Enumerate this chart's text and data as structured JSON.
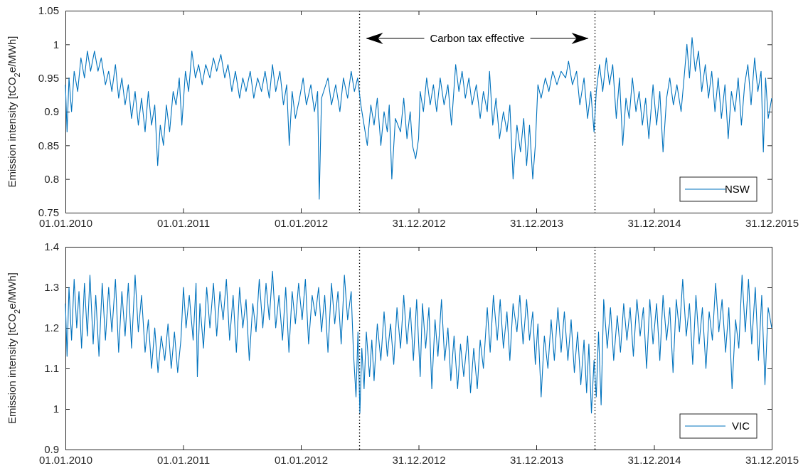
{
  "chart_data": [
    {
      "type": "line",
      "ylabel": "Emission intensity  [tCO$_{2}$e/MWh]",
      "annotations": [
        "Carbon tax effective"
      ],
      "legend": "bottom right",
      "xlim": [
        "2010-01-01",
        "2015-12-31"
      ],
      "xticks": [
        {
          "value": "2010-01-01",
          "label": "01.01.2010"
        },
        {
          "value": "2011-01-01",
          "label": "01.01.2011"
        },
        {
          "value": "2012-01-01",
          "label": "01.01.2012"
        },
        {
          "value": "2012-12-31",
          "label": "31.12.2012"
        },
        {
          "value": "2013-12-31",
          "label": "31.12.2013"
        },
        {
          "value": "2014-12-31",
          "label": "31.12.2014"
        },
        {
          "value": "2015-12-31",
          "label": "31.12.2015"
        }
      ],
      "ylim": [
        0.75,
        1.05
      ],
      "yticks": [
        0.75,
        0.8,
        0.85,
        0.9,
        0.95,
        1,
        1.05
      ],
      "ref_lines": [
        {
          "axis": "x",
          "value": "2012-07-01",
          "color": "#000000",
          "line_style": "dotted"
        },
        {
          "axis": "x",
          "value": "2014-07-01",
          "color": "#000000",
          "line_style": "dotted"
        }
      ],
      "series": [
        {
          "name": "NSW",
          "color": "#0072bd",
          "x": [
            "2010-01-01",
            "2010-01-06",
            "2010-01-12",
            "2010-01-20",
            "2010-01-28",
            "2010-02-08",
            "2010-02-18",
            "2010-03-01",
            "2010-03-10",
            "2010-03-20",
            "2010-04-01",
            "2010-04-12",
            "2010-04-22",
            "2010-05-05",
            "2010-05-15",
            "2010-05-25",
            "2010-06-05",
            "2010-06-15",
            "2010-06-25",
            "2010-07-05",
            "2010-07-15",
            "2010-07-25",
            "2010-08-05",
            "2010-08-15",
            "2010-08-25",
            "2010-09-05",
            "2010-09-15",
            "2010-09-25",
            "2010-10-05",
            "2010-10-14",
            "2010-10-22",
            "2010-11-01",
            "2010-11-10",
            "2010-11-20",
            "2010-12-01",
            "2010-12-10",
            "2010-12-20",
            "2010-12-28",
            "2011-01-08",
            "2011-01-18",
            "2011-01-28",
            "2011-02-08",
            "2011-02-18",
            "2011-03-01",
            "2011-03-12",
            "2011-03-25",
            "2011-04-05",
            "2011-04-15",
            "2011-04-28",
            "2011-05-10",
            "2011-05-20",
            "2011-06-01",
            "2011-06-12",
            "2011-06-25",
            "2011-07-05",
            "2011-07-15",
            "2011-07-28",
            "2011-08-08",
            "2011-08-20",
            "2011-09-01",
            "2011-09-12",
            "2011-09-25",
            "2011-10-05",
            "2011-10-15",
            "2011-10-28",
            "2011-11-08",
            "2011-11-18",
            "2011-11-26",
            "2011-12-05",
            "2011-12-15",
            "2011-12-28",
            "2012-01-08",
            "2012-01-18",
            "2012-02-01",
            "2012-02-12",
            "2012-02-22",
            "2012-02-27",
            "2012-03-05",
            "2012-03-25",
            "2012-04-05",
            "2012-04-18",
            "2012-05-01",
            "2012-05-12",
            "2012-05-25",
            "2012-06-05",
            "2012-06-15",
            "2012-06-25",
            "2012-07-05",
            "2012-07-15",
            "2012-07-25",
            "2012-08-05",
            "2012-08-15",
            "2012-08-25",
            "2012-09-05",
            "2012-09-15",
            "2012-09-25",
            "2012-10-01",
            "2012-10-09",
            "2012-10-20",
            "2012-11-05",
            "2012-11-15",
            "2012-11-25",
            "2012-12-05",
            "2012-12-12",
            "2012-12-22",
            "2012-12-31",
            "2013-01-05",
            "2013-01-15",
            "2013-01-25",
            "2013-02-05",
            "2013-02-15",
            "2013-02-25",
            "2013-03-08",
            "2013-03-20",
            "2013-04-01",
            "2013-04-12",
            "2013-04-25",
            "2013-05-05",
            "2013-05-15",
            "2013-05-25",
            "2013-06-05",
            "2013-06-15",
            "2013-06-28",
            "2013-07-10",
            "2013-07-20",
            "2013-08-01",
            "2013-08-08",
            "2013-08-18",
            "2013-08-28",
            "2013-09-08",
            "2013-09-20",
            "2013-10-01",
            "2013-10-10",
            "2013-10-20",
            "2013-11-01",
            "2013-11-12",
            "2013-11-22",
            "2013-12-01",
            "2013-12-10",
            "2013-12-20",
            "2013-12-28",
            "2014-01-05",
            "2014-01-15",
            "2014-01-28",
            "2014-02-08",
            "2014-02-20",
            "2014-03-05",
            "2014-03-18",
            "2014-04-01",
            "2014-04-10",
            "2014-04-22",
            "2014-05-05",
            "2014-05-15",
            "2014-05-28",
            "2014-06-08",
            "2014-06-18",
            "2014-06-28",
            "2014-07-05",
            "2014-07-15",
            "2014-07-25",
            "2014-08-05",
            "2014-08-15",
            "2014-08-25",
            "2014-09-05",
            "2014-09-15",
            "2014-09-25",
            "2014-10-05",
            "2014-10-15",
            "2014-10-25",
            "2014-11-05",
            "2014-11-15",
            "2014-11-25",
            "2014-12-05",
            "2014-12-15",
            "2014-12-28",
            "2015-01-08",
            "2015-01-18",
            "2015-01-28",
            "2015-02-08",
            "2015-02-18",
            "2015-03-01",
            "2015-03-12",
            "2015-03-25",
            "2015-04-05",
            "2015-04-12",
            "2015-04-20",
            "2015-04-28",
            "2015-05-08",
            "2015-05-18",
            "2015-05-28",
            "2015-06-08",
            "2015-06-18",
            "2015-06-28",
            "2015-07-08",
            "2015-07-18",
            "2015-07-28",
            "2015-08-08",
            "2015-08-18",
            "2015-08-28",
            "2015-09-08",
            "2015-09-18",
            "2015-09-28",
            "2015-10-08",
            "2015-10-18",
            "2015-10-28",
            "2015-11-08",
            "2015-11-18",
            "2015-11-28",
            "2015-12-05",
            "2015-12-12",
            "2015-12-20",
            "2015-12-31"
          ],
          "values": [
            0.94,
            0.87,
            0.95,
            0.9,
            0.96,
            0.93,
            0.98,
            0.95,
            0.99,
            0.96,
            0.99,
            0.96,
            0.98,
            0.94,
            0.96,
            0.93,
            0.97,
            0.92,
            0.95,
            0.91,
            0.94,
            0.89,
            0.93,
            0.88,
            0.92,
            0.87,
            0.93,
            0.88,
            0.91,
            0.82,
            0.88,
            0.85,
            0.91,
            0.87,
            0.93,
            0.91,
            0.95,
            0.88,
            0.96,
            0.93,
            0.99,
            0.95,
            0.97,
            0.94,
            0.97,
            0.95,
            0.98,
            0.96,
            0.985,
            0.95,
            0.97,
            0.93,
            0.96,
            0.92,
            0.95,
            0.93,
            0.96,
            0.92,
            0.95,
            0.93,
            0.96,
            0.92,
            0.97,
            0.93,
            0.96,
            0.91,
            0.94,
            0.85,
            0.93,
            0.89,
            0.92,
            0.95,
            0.91,
            0.94,
            0.9,
            0.93,
            0.77,
            0.92,
            0.95,
            0.91,
            0.94,
            0.9,
            0.95,
            0.92,
            0.96,
            0.93,
            0.95,
            0.91,
            0.88,
            0.85,
            0.91,
            0.88,
            0.92,
            0.85,
            0.9,
            0.87,
            0.91,
            0.8,
            0.89,
            0.87,
            0.92,
            0.86,
            0.9,
            0.85,
            0.83,
            0.86,
            0.93,
            0.9,
            0.95,
            0.91,
            0.94,
            0.9,
            0.95,
            0.91,
            0.94,
            0.88,
            0.97,
            0.93,
            0.96,
            0.92,
            0.95,
            0.91,
            0.94,
            0.89,
            0.93,
            0.9,
            0.96,
            0.88,
            0.92,
            0.86,
            0.9,
            0.87,
            0.91,
            0.8,
            0.88,
            0.84,
            0.89,
            0.82,
            0.88,
            0.8,
            0.85,
            0.94,
            0.92,
            0.95,
            0.93,
            0.96,
            0.94,
            0.96,
            0.95,
            0.975,
            0.94,
            0.96,
            0.91,
            0.95,
            0.89,
            0.93,
            0.87,
            0.93,
            0.97,
            0.93,
            0.98,
            0.94,
            0.97,
            0.89,
            0.95,
            0.85,
            0.92,
            0.89,
            0.95,
            0.9,
            0.93,
            0.88,
            0.92,
            0.86,
            0.94,
            0.88,
            0.93,
            0.84,
            0.92,
            0.95,
            0.91,
            0.94,
            0.9,
            0.96,
            1.0,
            0.95,
            1.01,
            0.96,
            0.99,
            0.93,
            0.97,
            0.92,
            0.96,
            0.9,
            0.95,
            0.89,
            0.94,
            0.86,
            0.93,
            0.9,
            0.95,
            0.88,
            0.94,
            0.97,
            0.91,
            0.98,
            0.93,
            0.96,
            0.84,
            0.95,
            0.89,
            0.92
          ]
        }
      ]
    },
    {
      "type": "line",
      "ylabel": "Emission intensity  [tCO$_{2}$e/MWh]",
      "legend": "bottom right",
      "xlim": [
        "2010-01-01",
        "2015-12-31"
      ],
      "xticks": [
        {
          "value": "2010-01-01",
          "label": "01.01.2010"
        },
        {
          "value": "2011-01-01",
          "label": "01.01.2011"
        },
        {
          "value": "2012-01-01",
          "label": "01.01.2012"
        },
        {
          "value": "2012-12-31",
          "label": "31.12.2012"
        },
        {
          "value": "2013-12-31",
          "label": "31.12.2013"
        },
        {
          "value": "2014-12-31",
          "label": "31.12.2014"
        },
        {
          "value": "2015-12-31",
          "label": "31.12.2015"
        }
      ],
      "ylim": [
        0.9,
        1.4
      ],
      "yticks": [
        0.9,
        1,
        1.1,
        1.2,
        1.3,
        1.4
      ],
      "ref_lines": [
        {
          "axis": "x",
          "value": "2012-07-01",
          "color": "#000000",
          "line_style": "dotted"
        },
        {
          "axis": "x",
          "value": "2014-07-01",
          "color": "#000000",
          "line_style": "dotted"
        }
      ],
      "series": [
        {
          "name": "VIC",
          "color": "#0072bd",
          "x": [
            "2010-01-01",
            "2010-01-06",
            "2010-01-12",
            "2010-01-20",
            "2010-01-28",
            "2010-02-05",
            "2010-02-12",
            "2010-02-20",
            "2010-03-01",
            "2010-03-10",
            "2010-03-18",
            "2010-03-28",
            "2010-04-05",
            "2010-04-15",
            "2010-04-25",
            "2010-05-05",
            "2010-05-15",
            "2010-05-25",
            "2010-06-05",
            "2010-06-15",
            "2010-06-25",
            "2010-07-05",
            "2010-07-15",
            "2010-07-25",
            "2010-08-05",
            "2010-08-15",
            "2010-08-25",
            "2010-09-05",
            "2010-09-15",
            "2010-09-25",
            "2010-10-05",
            "2010-10-15",
            "2010-10-25",
            "2010-11-05",
            "2010-11-15",
            "2010-11-25",
            "2010-12-05",
            "2010-12-15",
            "2010-12-25",
            "2011-01-02",
            "2011-01-10",
            "2011-01-20",
            "2011-02-01",
            "2011-02-10",
            "2011-02-14",
            "2011-02-22",
            "2011-03-05",
            "2011-03-15",
            "2011-03-25",
            "2011-04-05",
            "2011-04-15",
            "2011-04-25",
            "2011-05-05",
            "2011-05-15",
            "2011-05-25",
            "2011-06-05",
            "2011-06-15",
            "2011-06-25",
            "2011-07-05",
            "2011-07-15",
            "2011-07-25",
            "2011-08-05",
            "2011-08-15",
            "2011-08-25",
            "2011-09-05",
            "2011-09-15",
            "2011-09-25",
            "2011-10-05",
            "2011-10-15",
            "2011-10-25",
            "2011-11-05",
            "2011-11-15",
            "2011-11-25",
            "2011-12-05",
            "2011-12-15",
            "2011-12-25",
            "2012-01-05",
            "2012-01-15",
            "2012-01-25",
            "2012-02-05",
            "2012-02-15",
            "2012-02-25",
            "2012-03-05",
            "2012-03-15",
            "2012-03-25",
            "2012-04-05",
            "2012-04-15",
            "2012-04-25",
            "2012-05-05",
            "2012-05-15",
            "2012-05-25",
            "2012-06-05",
            "2012-06-12",
            "2012-06-20",
            "2012-06-26",
            "2012-07-02",
            "2012-07-08",
            "2012-07-15",
            "2012-07-22",
            "2012-08-01",
            "2012-08-08",
            "2012-08-15",
            "2012-08-25",
            "2012-09-05",
            "2012-09-15",
            "2012-09-25",
            "2012-10-05",
            "2012-10-15",
            "2012-10-25",
            "2012-11-05",
            "2012-11-15",
            "2012-11-25",
            "2012-12-05",
            "2012-12-15",
            "2012-12-25",
            "2013-01-05",
            "2013-01-12",
            "2013-01-22",
            "2013-02-01",
            "2013-02-10",
            "2013-02-20",
            "2013-03-01",
            "2013-03-12",
            "2013-03-22",
            "2013-04-01",
            "2013-04-10",
            "2013-04-20",
            "2013-05-01",
            "2013-05-10",
            "2013-05-20",
            "2013-06-01",
            "2013-06-10",
            "2013-06-20",
            "2013-07-01",
            "2013-07-10",
            "2013-07-20",
            "2013-08-01",
            "2013-08-10",
            "2013-08-20",
            "2013-09-01",
            "2013-09-10",
            "2013-09-20",
            "2013-10-01",
            "2013-10-10",
            "2013-10-20",
            "2013-11-01",
            "2013-11-10",
            "2013-11-20",
            "2013-12-01",
            "2013-12-10",
            "2013-12-20",
            "2013-12-28",
            "2014-01-05",
            "2014-01-15",
            "2014-01-25",
            "2014-02-05",
            "2014-02-15",
            "2014-02-25",
            "2014-03-08",
            "2014-03-18",
            "2014-03-28",
            "2014-04-08",
            "2014-04-18",
            "2014-04-28",
            "2014-05-08",
            "2014-05-18",
            "2014-05-28",
            "2014-06-05",
            "2014-06-12",
            "2014-06-20",
            "2014-06-28",
            "2014-07-05",
            "2014-07-12",
            "2014-07-20",
            "2014-07-28",
            "2014-08-08",
            "2014-08-18",
            "2014-08-28",
            "2014-09-08",
            "2014-09-18",
            "2014-09-28",
            "2014-10-08",
            "2014-10-18",
            "2014-10-28",
            "2014-11-08",
            "2014-11-18",
            "2014-11-28",
            "2014-12-08",
            "2014-12-18",
            "2014-12-28",
            "2015-01-08",
            "2015-01-18",
            "2015-01-28",
            "2015-02-08",
            "2015-02-18",
            "2015-02-28",
            "2015-03-10",
            "2015-03-20",
            "2015-03-30",
            "2015-04-10",
            "2015-04-20",
            "2015-04-30",
            "2015-05-10",
            "2015-05-20",
            "2015-05-30",
            "2015-06-10",
            "2015-06-20",
            "2015-06-30",
            "2015-07-10",
            "2015-07-20",
            "2015-07-30",
            "2015-08-10",
            "2015-08-20",
            "2015-08-30",
            "2015-09-10",
            "2015-09-20",
            "2015-09-30",
            "2015-10-10",
            "2015-10-20",
            "2015-10-30",
            "2015-11-10",
            "2015-11-20",
            "2015-11-30",
            "2015-12-10",
            "2015-12-20",
            "2015-12-31"
          ],
          "values": [
            1.26,
            1.13,
            1.3,
            1.17,
            1.32,
            1.2,
            1.29,
            1.15,
            1.31,
            1.18,
            1.33,
            1.16,
            1.28,
            1.13,
            1.31,
            1.17,
            1.3,
            1.19,
            1.32,
            1.14,
            1.29,
            1.18,
            1.31,
            1.15,
            1.33,
            1.19,
            1.28,
            1.14,
            1.22,
            1.1,
            1.2,
            1.09,
            1.18,
            1.12,
            1.21,
            1.1,
            1.19,
            1.09,
            1.17,
            1.3,
            1.2,
            1.28,
            1.17,
            1.31,
            1.08,
            1.26,
            1.15,
            1.3,
            1.2,
            1.31,
            1.18,
            1.29,
            1.22,
            1.32,
            1.17,
            1.28,
            1.14,
            1.3,
            1.2,
            1.27,
            1.12,
            1.26,
            1.19,
            1.32,
            1.2,
            1.31,
            1.22,
            1.34,
            1.2,
            1.28,
            1.17,
            1.3,
            1.14,
            1.29,
            1.21,
            1.31,
            1.22,
            1.32,
            1.16,
            1.28,
            1.23,
            1.3,
            1.19,
            1.28,
            1.14,
            1.31,
            1.21,
            1.29,
            1.16,
            1.33,
            1.22,
            1.29,
            1.14,
            1.03,
            1.19,
            0.99,
            1.15,
            1.05,
            1.19,
            1.08,
            1.17,
            1.07,
            1.21,
            1.12,
            1.24,
            1.13,
            1.21,
            1.11,
            1.25,
            1.15,
            1.28,
            1.16,
            1.25,
            1.12,
            1.27,
            1.08,
            1.26,
            1.15,
            1.25,
            1.05,
            1.22,
            1.13,
            1.27,
            1.12,
            1.2,
            1.07,
            1.18,
            1.05,
            1.16,
            1.08,
            1.18,
            1.04,
            1.15,
            1.05,
            1.17,
            1.1,
            1.25,
            1.14,
            1.28,
            1.17,
            1.27,
            1.15,
            1.24,
            1.12,
            1.26,
            1.19,
            1.28,
            1.16,
            1.27,
            1.17,
            1.24,
            1.11,
            1.21,
            1.03,
            1.18,
            1.1,
            1.22,
            1.12,
            1.25,
            1.14,
            1.24,
            1.12,
            1.22,
            1.09,
            1.19,
            1.06,
            1.17,
            1.04,
            1.16,
            0.99,
            1.12,
            1.03,
            1.19,
            1.01,
            1.27,
            1.15,
            1.25,
            1.12,
            1.23,
            1.14,
            1.26,
            1.17,
            1.25,
            1.13,
            1.27,
            1.18,
            1.25,
            1.1,
            1.27,
            1.16,
            1.26,
            1.12,
            1.28,
            1.17,
            1.25,
            1.09,
            1.27,
            1.19,
            1.32,
            1.18,
            1.26,
            1.11,
            1.28,
            1.16,
            1.25,
            1.1,
            1.24,
            1.17,
            1.31,
            1.19,
            1.27,
            1.14,
            1.25,
            1.05,
            1.22,
            1.15,
            1.33,
            1.19,
            1.32,
            1.16,
            1.3,
            1.12,
            1.28,
            1.06,
            1.25,
            1.2
          ]
        }
      ]
    }
  ]
}
